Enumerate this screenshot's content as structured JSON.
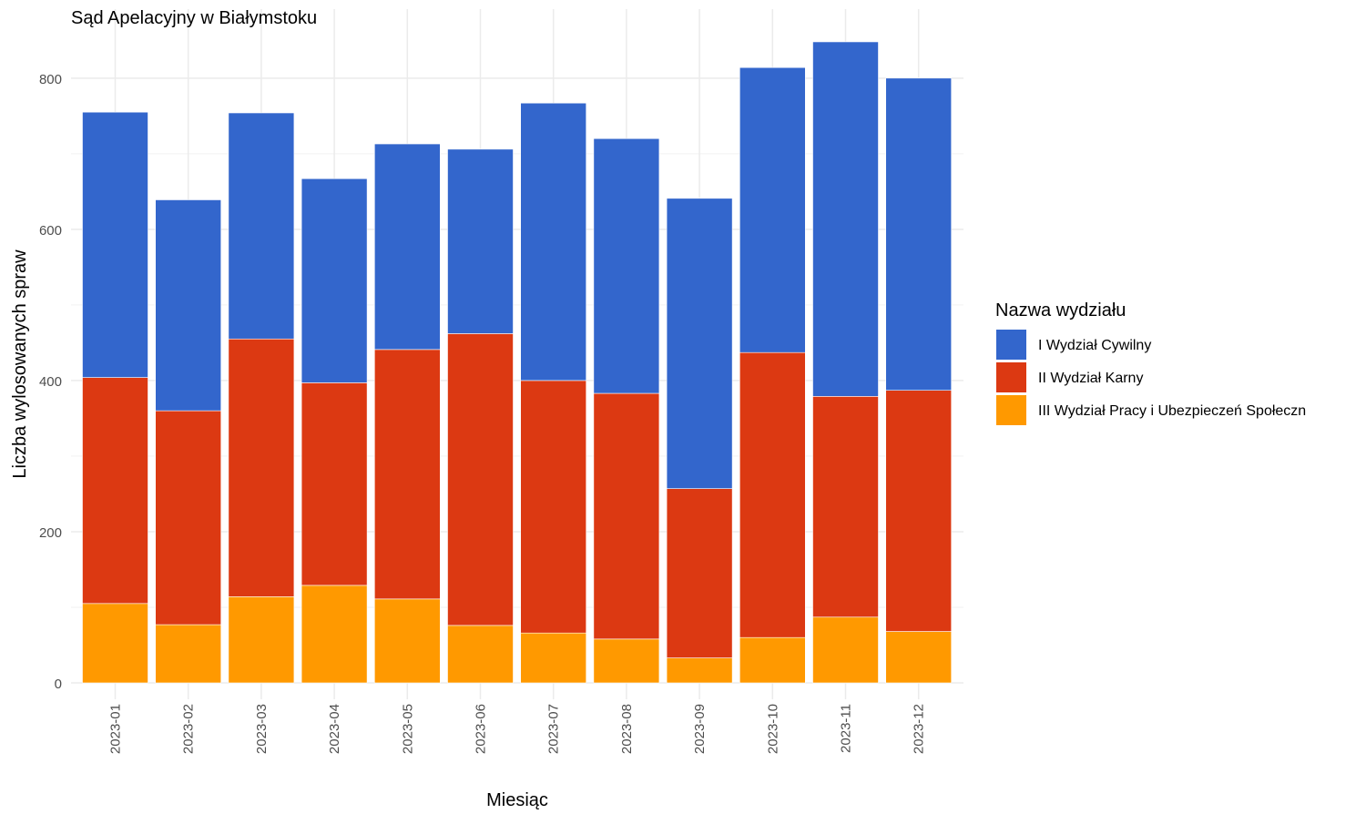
{
  "chart_data": {
    "type": "bar",
    "stacked": true,
    "title": "Sąd Apelacyjny w Białymstoku",
    "xlabel": "Miesiąc",
    "ylabel": "Liczba wylosowanych spraw",
    "ylim": [
      0,
      860
    ],
    "y_ticks": [
      0,
      200,
      400,
      600,
      800
    ],
    "grid": true,
    "legend": {
      "title": "Nazwa wydziału",
      "position": "right"
    },
    "categories": [
      "2023-01",
      "2023-02",
      "2023-03",
      "2023-04",
      "2023-05",
      "2023-06",
      "2023-07",
      "2023-08",
      "2023-09",
      "2023-10",
      "2023-11",
      "2023-12"
    ],
    "series": [
      {
        "name": "III Wydział Pracy i Ubezpieczeń Społeczn",
        "color": "#FF9900",
        "values": [
          105,
          77,
          114,
          129,
          111,
          76,
          66,
          58,
          33,
          60,
          87,
          68
        ]
      },
      {
        "name": "II Wydział Karny",
        "color": "#DC3912",
        "values": [
          299,
          283,
          341,
          268,
          330,
          386,
          334,
          325,
          224,
          377,
          292,
          319
        ]
      },
      {
        "name": "I Wydział Cywilny",
        "color": "#3366CC",
        "values": [
          351,
          279,
          299,
          270,
          272,
          244,
          367,
          337,
          384,
          377,
          469,
          413
        ]
      }
    ],
    "legend_order": [
      "I Wydział Cywilny",
      "II Wydział Karny",
      "III Wydział Pracy i Ubezpieczeń Społeczn"
    ]
  }
}
